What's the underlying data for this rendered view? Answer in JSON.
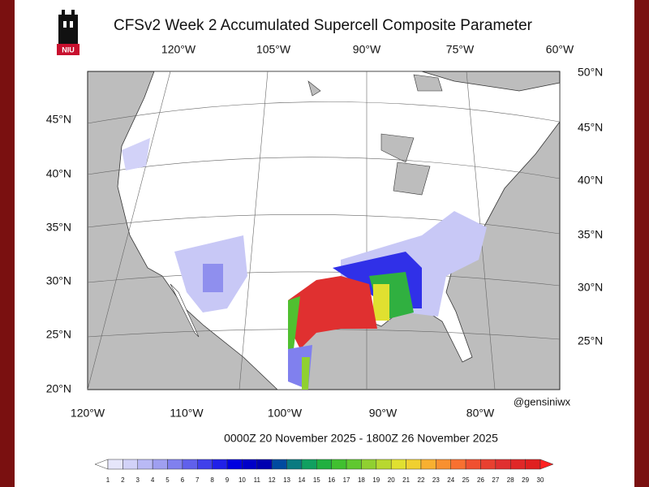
{
  "header": {
    "title": "CFSv2 Week 2 Accumulated Supercell Composite Parameter",
    "logo_text": "NIU"
  },
  "map": {
    "top_lon_labels": [
      "120°W",
      "105°W",
      "90°W",
      "75°W",
      "60°W"
    ],
    "bottom_lon_labels": [
      "120°W",
      "110°W",
      "100°W",
      "90°W",
      "80°W"
    ],
    "left_lat_labels": [
      "45°N",
      "40°N",
      "35°N",
      "30°N",
      "25°N",
      "20°N"
    ],
    "right_lat_labels": [
      "50°N",
      "45°N",
      "40°N",
      "35°N",
      "30°N",
      "25°N"
    ],
    "credit": "@gensiniwx",
    "valid_time": "0000Z 20  November  2025  - 1800Z 26  November  2025"
  },
  "colorbar": {
    "labels": [
      1,
      2,
      3,
      4,
      5,
      6,
      7,
      8,
      9,
      10,
      11,
      12,
      13,
      14,
      15,
      16,
      17,
      18,
      19,
      20,
      21,
      22,
      23,
      24,
      25,
      26,
      27,
      28,
      29,
      30
    ],
    "colors": [
      "#ffffff",
      "#e6e6fa",
      "#d2d2f8",
      "#b9b9f5",
      "#9f9ff0",
      "#8080ee",
      "#6060eb",
      "#4040ea",
      "#2020e8",
      "#0000e0",
      "#0000c8",
      "#0000b0",
      "#004aa0",
      "#0a7a80",
      "#10a060",
      "#20b040",
      "#40c030",
      "#60c830",
      "#90d030",
      "#b8d830",
      "#e0e030",
      "#f0d030",
      "#f8b030",
      "#f89030",
      "#f87030",
      "#f05030",
      "#e84030",
      "#e03030",
      "#e02828",
      "#e02020",
      "#ff2020"
    ]
  }
}
